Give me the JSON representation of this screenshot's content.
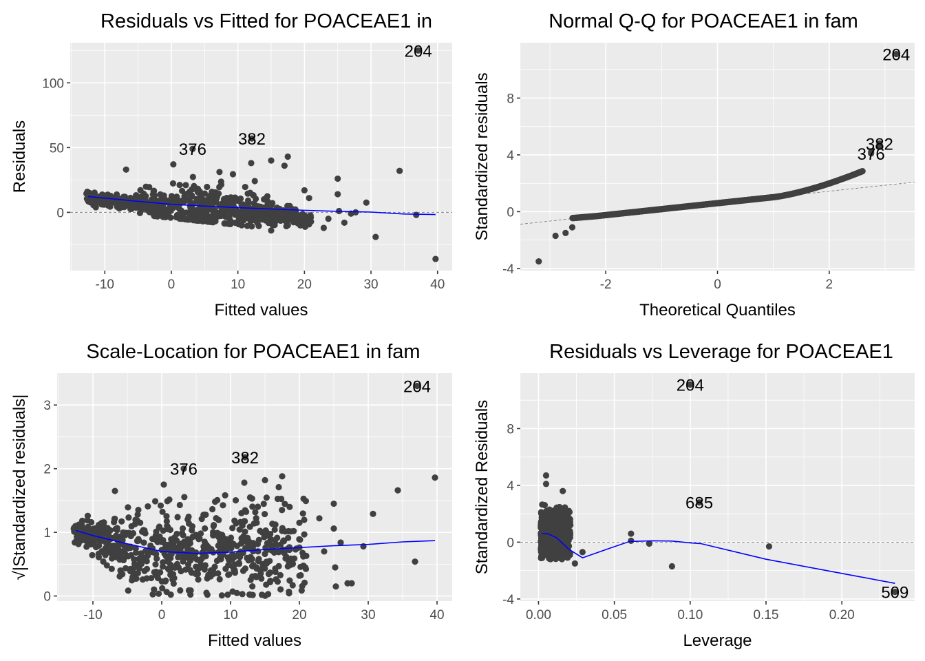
{
  "chart_data": [
    {
      "id": "resid-fitted",
      "type": "scatter",
      "title": "Residuals vs Fitted for POACEAE1 in",
      "xlabel": "Fitted values",
      "ylabel": "Residuals",
      "xlim": [
        -15.2,
        42.2
      ],
      "ylim": [
        -45,
        131
      ],
      "xticks": [
        -10,
        0,
        10,
        20,
        30,
        40
      ],
      "yticks": [
        0,
        50,
        100
      ],
      "xminor": [
        -15,
        -5,
        5,
        15,
        25,
        35
      ],
      "yminor": [
        -25,
        25,
        75,
        125
      ],
      "grid": true,
      "ref_line": {
        "kind": "hline",
        "y": 0
      },
      "smooth": [
        [
          -12.5,
          12.2
        ],
        [
          -10,
          11
        ],
        [
          -5,
          8.5
        ],
        [
          0,
          6.2
        ],
        [
          5,
          4.8
        ],
        [
          10,
          3.6
        ],
        [
          15,
          2.6
        ],
        [
          20,
          1.6
        ],
        [
          25,
          0.8
        ],
        [
          30,
          0.2
        ],
        [
          35,
          -1.3
        ],
        [
          39.7,
          -1.7
        ]
      ],
      "cloud": {
        "n": 700,
        "seed": 11,
        "xmin": -12.8,
        "xmax": 21,
        "lower_a": 10,
        "lower_b": -0.55,
        "spread_a": 5,
        "spread_b": 1.1,
        "spread_peak": 28,
        "peak_center": 6
      },
      "points": [
        [
          -6.8,
          33
        ],
        [
          0.3,
          37
        ],
        [
          12,
          38
        ],
        [
          15,
          40
        ],
        [
          17.5,
          43
        ],
        [
          17,
          36
        ],
        [
          20,
          17
        ],
        [
          20.7,
          11
        ],
        [
          22.9,
          -12
        ],
        [
          23.6,
          -5
        ],
        [
          25,
          26
        ],
        [
          25,
          14
        ],
        [
          25.2,
          1
        ],
        [
          26,
          -8
        ],
        [
          27,
          -1
        ],
        [
          27.7,
          0
        ],
        [
          29.3,
          7.5
        ],
        [
          30.7,
          -19
        ],
        [
          34.3,
          32
        ],
        [
          36.8,
          -2
        ],
        [
          39.7,
          -36
        ],
        [
          15,
          -14
        ],
        [
          17.5,
          -10
        ],
        [
          18.3,
          -4
        ]
      ],
      "labeled_points": [
        {
          "label": "204",
          "x": 37.1,
          "y": 125
        },
        {
          "label": "376",
          "x": 3.2,
          "y": 49
        },
        {
          "label": "382",
          "x": 12.1,
          "y": 57
        }
      ]
    },
    {
      "id": "normal-qq",
      "type": "scatter",
      "title": "Normal Q-Q for POACEAE1 in fam",
      "xlabel": "Theoretical Quantiles",
      "ylabel": "Standardized residuals",
      "xlim": [
        -3.53,
        3.53
      ],
      "ylim": [
        -4.15,
        11.9
      ],
      "xticks": [
        -2,
        0,
        2
      ],
      "yticks": [
        -4,
        0,
        4,
        8
      ],
      "xminor": [
        -3,
        -1,
        1,
        3
      ],
      "yminor": [
        -2,
        2,
        6,
        10
      ],
      "grid": true,
      "ref_line": {
        "kind": "abline",
        "intercept": 0.6,
        "slope": 0.42
      },
      "qq_curve": {
        "n": 600,
        "qmin": -2.6,
        "qmax": 2.6
      },
      "points": [
        [
          -3.2,
          -3.5
        ],
        [
          -2.9,
          -1.7
        ],
        [
          -2.72,
          -1.5
        ],
        [
          -2.6,
          -1.1
        ],
        [
          2.75,
          4.2
        ],
        [
          2.9,
          4.6
        ]
      ],
      "labeled_points": [
        {
          "label": "204",
          "x": 3.2,
          "y": 11.1
        },
        {
          "label": "382",
          "x": 2.9,
          "y": 4.8
        },
        {
          "label": "376",
          "x": 2.75,
          "y": 4.1
        }
      ]
    },
    {
      "id": "scale-location",
      "type": "scatter",
      "title": "Scale-Location for POACEAE1 in fam",
      "xlabel": "Fitted values",
      "ylabel": "√|Standardized residuals|",
      "xlim": [
        -15.2,
        42.2
      ],
      "ylim": [
        -0.08,
        3.5
      ],
      "xticks": [
        -10,
        0,
        10,
        20,
        30,
        40
      ],
      "yticks": [
        0,
        1,
        2,
        3
      ],
      "xminor": [
        -15,
        -5,
        5,
        15,
        25,
        35
      ],
      "yminor": [
        0.5,
        1.5,
        2.5
      ],
      "grid": true,
      "smooth": [
        [
          -12.5,
          1.03
        ],
        [
          -10,
          0.95
        ],
        [
          -5,
          0.82
        ],
        [
          0,
          0.7
        ],
        [
          5,
          0.67
        ],
        [
          10,
          0.69
        ],
        [
          15,
          0.73
        ],
        [
          20,
          0.76
        ],
        [
          25,
          0.79
        ],
        [
          30,
          0.81
        ],
        [
          35,
          0.85
        ],
        [
          39.7,
          0.87
        ]
      ],
      "cloud": {
        "n": 700,
        "seed": 23,
        "xmin": -12.8,
        "xmax": 21
      },
      "points": [
        [
          -6.8,
          1.65
        ],
        [
          0.3,
          1.75
        ],
        [
          12,
          1.78
        ],
        [
          15,
          1.82
        ],
        [
          17.5,
          1.88
        ],
        [
          17,
          1.71
        ],
        [
          20,
          1.15
        ],
        [
          21,
          0.63
        ],
        [
          22.9,
          1.22
        ],
        [
          23.6,
          0.7
        ],
        [
          25,
          1.45
        ],
        [
          25,
          1.06
        ],
        [
          25.2,
          0.45
        ],
        [
          25.3,
          0.15
        ],
        [
          26,
          0.84
        ],
        [
          27,
          0.2
        ],
        [
          27.6,
          0.2
        ],
        [
          29.3,
          0.78
        ],
        [
          30.7,
          1.29
        ],
        [
          34.3,
          1.66
        ],
        [
          36.8,
          0.54
        ],
        [
          39.7,
          1.86
        ],
        [
          6.5,
          0.05
        ],
        [
          10.3,
          0.07
        ]
      ],
      "labeled_points": [
        {
          "label": "204",
          "x": 37.1,
          "y": 3.3
        },
        {
          "label": "376",
          "x": 3.2,
          "y": 2.0
        },
        {
          "label": "382",
          "x": 12.1,
          "y": 2.18
        }
      ]
    },
    {
      "id": "resid-leverage",
      "type": "scatter",
      "title": "Residuals vs Leverage for POACEAE1",
      "xlabel": "Leverage",
      "ylabel": "Standardized Residuals",
      "xlim": [
        -0.012,
        0.248
      ],
      "ylim": [
        -4.15,
        11.9
      ],
      "xticks": [
        0.0,
        0.05,
        0.1,
        0.15,
        0.2
      ],
      "xtick_labels": [
        "0.00",
        "0.05",
        "0.10",
        "0.15",
        "0.20"
      ],
      "yticks": [
        -4,
        0,
        4,
        8
      ],
      "xminor": [
        0.025,
        0.075,
        0.125,
        0.175,
        0.225
      ],
      "yminor": [
        -2,
        2,
        6,
        10
      ],
      "grid": true,
      "ref_line": {
        "kind": "hline",
        "y": 0
      },
      "smooth": [
        [
          0.002,
          0.6
        ],
        [
          0.006,
          0.6
        ],
        [
          0.012,
          0.3
        ],
        [
          0.02,
          -0.5
        ],
        [
          0.029,
          -1.1
        ],
        [
          0.045,
          -0.5
        ],
        [
          0.06,
          0.05
        ],
        [
          0.075,
          0.1
        ],
        [
          0.088,
          0.08
        ],
        [
          0.1,
          -0.05
        ],
        [
          0.107,
          -0.1
        ],
        [
          0.15,
          -1.2
        ],
        [
          0.2,
          -2.2
        ],
        [
          0.235,
          -2.9
        ]
      ],
      "cloud": {
        "n": 500,
        "seed": 37,
        "xmin": 0.0015,
        "xmax": 0.021
      },
      "points": [
        [
          0.005,
          4.7
        ],
        [
          0.005,
          4.1
        ],
        [
          0.016,
          3.6
        ],
        [
          0.02,
          2.2
        ],
        [
          0.021,
          1.2
        ],
        [
          0.024,
          -1.5
        ],
        [
          0.029,
          -0.7
        ],
        [
          0.061,
          0.6
        ],
        [
          0.061,
          0.1
        ],
        [
          0.073,
          -0.1
        ],
        [
          0.088,
          -1.7
        ],
        [
          0.152,
          -0.3
        ]
      ],
      "labeled_points": [
        {
          "label": "204",
          "x": 0.1,
          "y": 11.1
        },
        {
          "label": "685",
          "x": 0.106,
          "y": 2.8
        },
        {
          "label": "509",
          "x": 0.235,
          "y": -3.5
        }
      ]
    }
  ],
  "colors": {
    "panel_bg": "#ebebeb",
    "point": "#404040",
    "smooth": "#0000ff",
    "ref_line": "#7f7f7f",
    "tick_label": "#4d4d4d"
  }
}
